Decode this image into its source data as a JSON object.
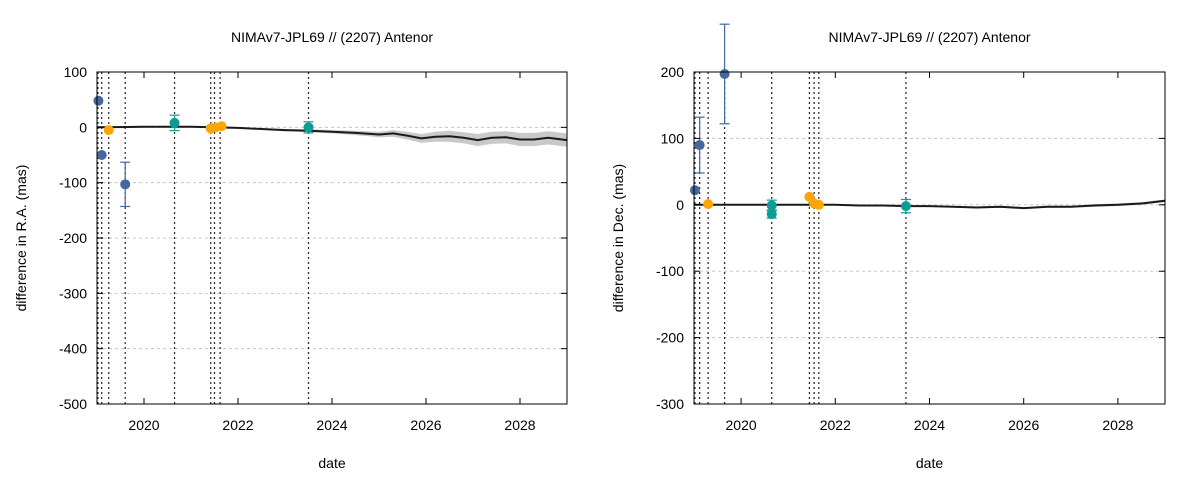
{
  "colors": {
    "blue": "#44689E",
    "orange": "#FFA500",
    "teal": "#0E9B96",
    "model": "#1a1a1a",
    "band": "#c9c9c9",
    "grid": "#c8c8c8"
  },
  "chart_data": [
    {
      "type": "scatter",
      "title": "NIMAv7-JPL69 // (2207) Antenor",
      "xlabel": "date",
      "ylabel": "difference in R.A. (mas)",
      "xlim": [
        2019.0,
        2029.0
      ],
      "ylim": [
        -500,
        100
      ],
      "xticks": [
        2020,
        2022,
        2024,
        2026,
        2028
      ],
      "yticks": [
        100,
        0,
        -100,
        -200,
        -300,
        -400,
        -500
      ],
      "grid": "horizontal dashed",
      "vlines": [
        2019.02,
        2019.1,
        2019.25,
        2019.6,
        2020.65,
        2021.42,
        2021.5,
        2021.62,
        2023.5
      ],
      "model_curve": {
        "name": "NIMAv7-JPL69 difference",
        "x": [
          2019.0,
          2020.0,
          2021.0,
          2022.0,
          2022.5,
          2023.0,
          2023.5,
          2024.0,
          2024.5,
          2025.0,
          2025.3,
          2025.6,
          2025.9,
          2026.2,
          2026.5,
          2026.8,
          2027.1,
          2027.4,
          2027.7,
          2028.0,
          2028.3,
          2028.6,
          2029.0
        ],
        "y": [
          0,
          1,
          1,
          -1,
          -3,
          -5,
          -6,
          -8,
          -10,
          -13,
          -11,
          -15,
          -20,
          -17,
          -16,
          -19,
          -23,
          -19,
          -18,
          -22,
          -22,
          -19,
          -23
        ],
        "band_halfwidth": [
          0,
          0,
          0.5,
          1,
          1.5,
          2,
          2.5,
          3,
          4,
          5,
          6,
          7,
          8,
          9,
          10,
          10,
          11,
          11,
          11,
          12,
          12,
          12,
          12
        ]
      },
      "series": [
        {
          "name": "blue observations",
          "color": "blue",
          "points": [
            {
              "x": 2019.03,
              "y": 48,
              "err": 0
            },
            {
              "x": 2019.1,
              "y": -50,
              "err": 0
            },
            {
              "x": 2019.6,
              "y": -103,
              "err": 40
            }
          ]
        },
        {
          "name": "orange observations",
          "color": "orange",
          "points": [
            {
              "x": 2019.25,
              "y": -5,
              "err": 0
            },
            {
              "x": 2021.42,
              "y": -2,
              "err": 0
            },
            {
              "x": 2021.52,
              "y": 0,
              "err": 0
            },
            {
              "x": 2021.65,
              "y": 2,
              "err": 0
            }
          ]
        },
        {
          "name": "teal observations",
          "color": "teal",
          "points": [
            {
              "x": 2020.65,
              "y": 8,
              "err": 14
            },
            {
              "x": 2023.5,
              "y": 0,
              "err": 10
            }
          ]
        }
      ]
    },
    {
      "type": "scatter",
      "title": "NIMAv7-JPL69 // (2207) Antenor",
      "xlabel": "date",
      "ylabel": "difference in Dec. (mas)",
      "xlim": [
        2019.0,
        2029.0
      ],
      "ylim": [
        -300,
        200
      ],
      "xticks": [
        2020,
        2022,
        2024,
        2026,
        2028
      ],
      "yticks": [
        200,
        100,
        0,
        -100,
        -200,
        -300
      ],
      "grid": "horizontal dashed",
      "vlines": [
        2019.02,
        2019.12,
        2019.3,
        2019.65,
        2020.65,
        2021.45,
        2021.55,
        2021.65,
        2023.5
      ],
      "model_curve": {
        "name": "NIMAv7-JPL69 difference",
        "x": [
          2019.0,
          2020.0,
          2021.0,
          2022.0,
          2022.5,
          2023.0,
          2023.5,
          2024.0,
          2024.5,
          2025.0,
          2025.5,
          2026.0,
          2026.5,
          2027.0,
          2027.5,
          2028.0,
          2028.5,
          2029.0
        ],
        "y": [
          0,
          0,
          0,
          0,
          -1,
          -1,
          -2,
          -2,
          -3,
          -4,
          -3,
          -5,
          -3,
          -3,
          -1,
          0,
          2,
          6
        ],
        "band_halfwidth": [
          0,
          0,
          0,
          0.5,
          0.5,
          1,
          1,
          1,
          1,
          1.5,
          1.5,
          1.5,
          1.5,
          1.5,
          2,
          2,
          2,
          2
        ]
      },
      "series": [
        {
          "name": "blue observations",
          "color": "blue",
          "points": [
            {
              "x": 2019.02,
              "y": 22,
              "err": 0
            },
            {
              "x": 2019.12,
              "y": 90,
              "err": 42
            },
            {
              "x": 2019.65,
              "y": 197,
              "err": 75
            }
          ]
        },
        {
          "name": "orange observations",
          "color": "orange",
          "points": [
            {
              "x": 2019.3,
              "y": 1,
              "err": 0
            },
            {
              "x": 2021.45,
              "y": 12,
              "err": 0
            },
            {
              "x": 2021.55,
              "y": 2,
              "err": 0
            },
            {
              "x": 2021.65,
              "y": 0,
              "err": 0
            }
          ]
        },
        {
          "name": "teal observations",
          "color": "teal",
          "points": [
            {
              "x": 2020.65,
              "y": -1,
              "err": 8
            },
            {
              "x": 2020.65,
              "y": -14,
              "err": 6
            },
            {
              "x": 2023.5,
              "y": -2,
              "err": 10
            }
          ]
        }
      ]
    }
  ]
}
